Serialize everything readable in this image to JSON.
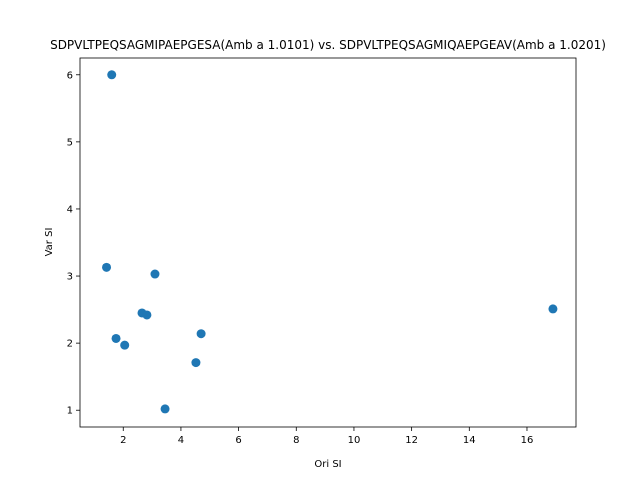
{
  "chart_data": {
    "type": "scatter",
    "title": "SDPVLTPEQSAGMIPAEPGESA(Amb a 1.0101) vs. SDPVLTPEQSAGMIQAEPGEAV(Amb a 1.0201)",
    "xlabel": "Ori SI",
    "ylabel": "Var SI",
    "xlim": [
      0.5,
      17.7
    ],
    "ylim": [
      0.75,
      6.25
    ],
    "xticks": [
      2,
      4,
      6,
      8,
      10,
      12,
      14,
      16
    ],
    "yticks": [
      1,
      2,
      3,
      4,
      5,
      6
    ],
    "grid": false,
    "marker_color": "#1f77b4",
    "points": [
      {
        "x": 1.6,
        "y": 6.0
      },
      {
        "x": 1.42,
        "y": 3.13
      },
      {
        "x": 3.1,
        "y": 3.03
      },
      {
        "x": 2.65,
        "y": 2.45
      },
      {
        "x": 2.82,
        "y": 2.42
      },
      {
        "x": 1.75,
        "y": 2.07
      },
      {
        "x": 2.05,
        "y": 1.97
      },
      {
        "x": 4.7,
        "y": 2.14
      },
      {
        "x": 4.52,
        "y": 1.71
      },
      {
        "x": 3.45,
        "y": 1.02
      },
      {
        "x": 16.9,
        "y": 2.51
      }
    ]
  }
}
